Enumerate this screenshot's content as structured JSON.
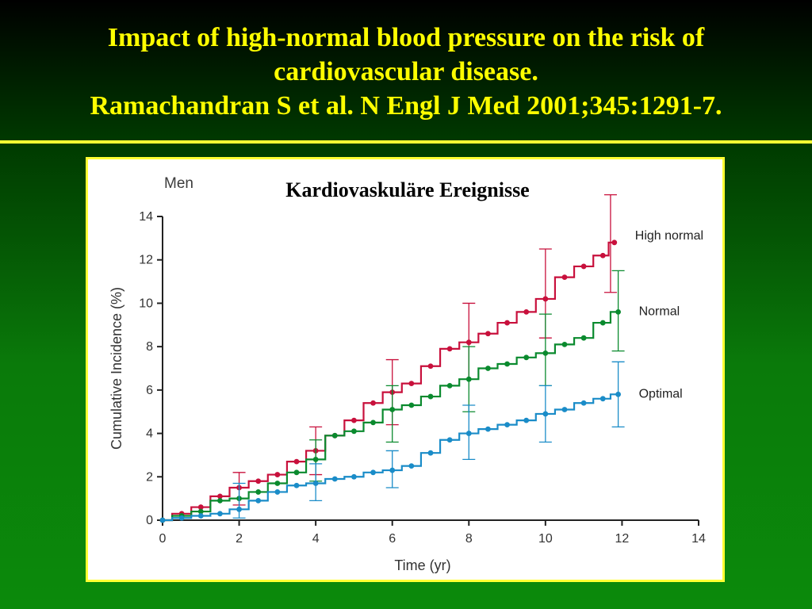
{
  "slide": {
    "title_lines": [
      "Impact of high-normal blood pressure on the risk of",
      "cardiovascular disease.",
      "Ramachandran S et al. N Engl J Med 2001;345:1291-7."
    ]
  },
  "chart_data": {
    "type": "line",
    "title": "Kardiovaskuläre Ereignisse",
    "panel_label": "Men",
    "xlabel": "Time (yr)",
    "ylabel": "Cumulative Incidence (%)",
    "xlim": [
      0,
      14
    ],
    "ylim": [
      0,
      14
    ],
    "xticks": [
      0,
      2,
      4,
      6,
      8,
      10,
      12,
      14
    ],
    "yticks": [
      0,
      2,
      4,
      6,
      8,
      10,
      12,
      14
    ],
    "grid": false,
    "legend": "inline labels at right end of each series",
    "series": [
      {
        "name": "High normal",
        "color": "#c8103c",
        "x": [
          0,
          0.5,
          1,
          1.5,
          2,
          2.5,
          3,
          3.5,
          4,
          4.5,
          5,
          5.5,
          6,
          6.5,
          7,
          7.5,
          8,
          8.5,
          9,
          9.5,
          10,
          10.5,
          11,
          11.5,
          11.8
        ],
        "y": [
          0,
          0.3,
          0.6,
          1.1,
          1.5,
          1.8,
          2.1,
          2.7,
          3.2,
          3.9,
          4.6,
          5.4,
          5.9,
          6.3,
          7.1,
          7.9,
          8.2,
          8.6,
          9.1,
          9.6,
          10.2,
          11.2,
          11.7,
          12.2,
          12.8
        ],
        "error_bars": [
          {
            "x": 2,
            "low": 0.7,
            "high": 2.2
          },
          {
            "x": 4,
            "low": 2.1,
            "high": 4.3
          },
          {
            "x": 6,
            "low": 4.4,
            "high": 7.4
          },
          {
            "x": 8,
            "low": 6.5,
            "high": 10.0
          },
          {
            "x": 10,
            "low": 8.4,
            "high": 12.5
          },
          {
            "x": 11.7,
            "low": 10.5,
            "high": 15.0
          }
        ]
      },
      {
        "name": "Normal",
        "color": "#0a8a2e",
        "x": [
          0,
          0.5,
          1,
          1.5,
          2,
          2.5,
          3,
          3.5,
          4,
          4.5,
          5,
          5.5,
          6,
          6.5,
          7,
          7.5,
          8,
          8.5,
          9,
          9.5,
          10,
          10.5,
          11,
          11.5,
          11.9
        ],
        "y": [
          0,
          0.2,
          0.4,
          0.9,
          1.0,
          1.3,
          1.7,
          2.2,
          2.8,
          3.9,
          4.1,
          4.5,
          5.1,
          5.3,
          5.7,
          6.2,
          6.5,
          7.0,
          7.2,
          7.5,
          7.7,
          8.1,
          8.4,
          9.1,
          9.6
        ],
        "error_bars": [
          {
            "x": 4,
            "low": 1.8,
            "high": 3.7
          },
          {
            "x": 6,
            "low": 3.6,
            "high": 6.2
          },
          {
            "x": 8,
            "low": 5.0,
            "high": 8.0
          },
          {
            "x": 10,
            "low": 6.2,
            "high": 9.5
          },
          {
            "x": 11.9,
            "low": 7.8,
            "high": 11.5
          }
        ]
      },
      {
        "name": "Optimal",
        "color": "#1a8cc8",
        "x": [
          0,
          0.5,
          1,
          1.5,
          2,
          2.5,
          3,
          3.5,
          4,
          4.5,
          5,
          5.5,
          6,
          6.5,
          7,
          7.5,
          8,
          8.5,
          9,
          9.5,
          10,
          10.5,
          11,
          11.5,
          11.9
        ],
        "y": [
          0,
          0.1,
          0.2,
          0.3,
          0.5,
          0.9,
          1.3,
          1.6,
          1.7,
          1.9,
          2.0,
          2.2,
          2.3,
          2.5,
          3.1,
          3.7,
          4.0,
          4.2,
          4.4,
          4.6,
          4.9,
          5.1,
          5.4,
          5.6,
          5.8
        ],
        "error_bars": [
          {
            "x": 2,
            "low": 0.1,
            "high": 1.7
          },
          {
            "x": 4,
            "low": 0.9,
            "high": 2.6
          },
          {
            "x": 6,
            "low": 1.5,
            "high": 3.2
          },
          {
            "x": 8,
            "low": 2.8,
            "high": 5.3
          },
          {
            "x": 10,
            "low": 3.6,
            "high": 6.2
          },
          {
            "x": 11.9,
            "low": 4.3,
            "high": 7.3
          }
        ]
      }
    ]
  }
}
